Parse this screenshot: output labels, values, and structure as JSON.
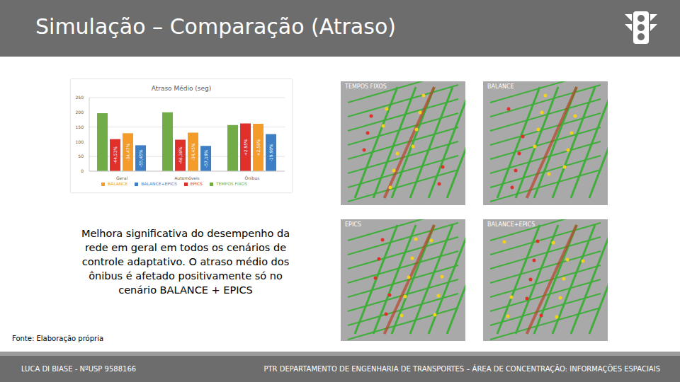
{
  "header": {
    "title": "Simulação – Comparação (Atraso)"
  },
  "chart_data": {
    "type": "bar",
    "title": "Atraso Médio (seg)",
    "categories": [
      "Geral",
      "Automóveis",
      "Ônibus"
    ],
    "series": [
      {
        "name": "TEMPOS FIXOS",
        "color": "#70ad47",
        "values": [
          197,
          200,
          157
        ]
      },
      {
        "name": "EPICS",
        "color": "#e0302a",
        "values": [
          109,
          107,
          162
        ],
        "annotations": [
          "-44,53%",
          "-46,36%",
          "+2,95%"
        ]
      },
      {
        "name": "BALANCE",
        "color": "#f39c2a",
        "values": [
          129,
          131,
          161
        ],
        "annotations": [
          "-34,47%",
          "-34,45%",
          "+2,56%"
        ]
      },
      {
        "name": "BALANCE+EPICS",
        "color": "#3d7ec4",
        "values": [
          88,
          86,
          126
        ],
        "annotations": [
          "-55,45%",
          "-57,18%",
          "-19,90%"
        ]
      }
    ],
    "ylim": [
      0,
      250
    ],
    "yticks": [
      0,
      50,
      100,
      150,
      200,
      250
    ],
    "grid": true,
    "legend": "bottom"
  },
  "body": {
    "text": "Melhora significativa do desempenho da rede em geral em todos os cenários de controle adaptativo. O atraso médio dos ônibus é afetado positivamente só no cenário BALANCE + EPICS",
    "source": "Fonte: Elaboração própria"
  },
  "maps": [
    "TEMPOS FIXOS",
    "BALANCE",
    "EPICS",
    "BALANCE+EPICS"
  ],
  "footer": {
    "left": "LUCA DI BIASE - NºUSP 9588166",
    "right": "PTR DEPARTAMENTO DE ENGENHARIA DE TRANSPORTES – ÁREA DE CONCENTRAÇÃO: INFORMAÇÕES ESPACIAIS"
  }
}
